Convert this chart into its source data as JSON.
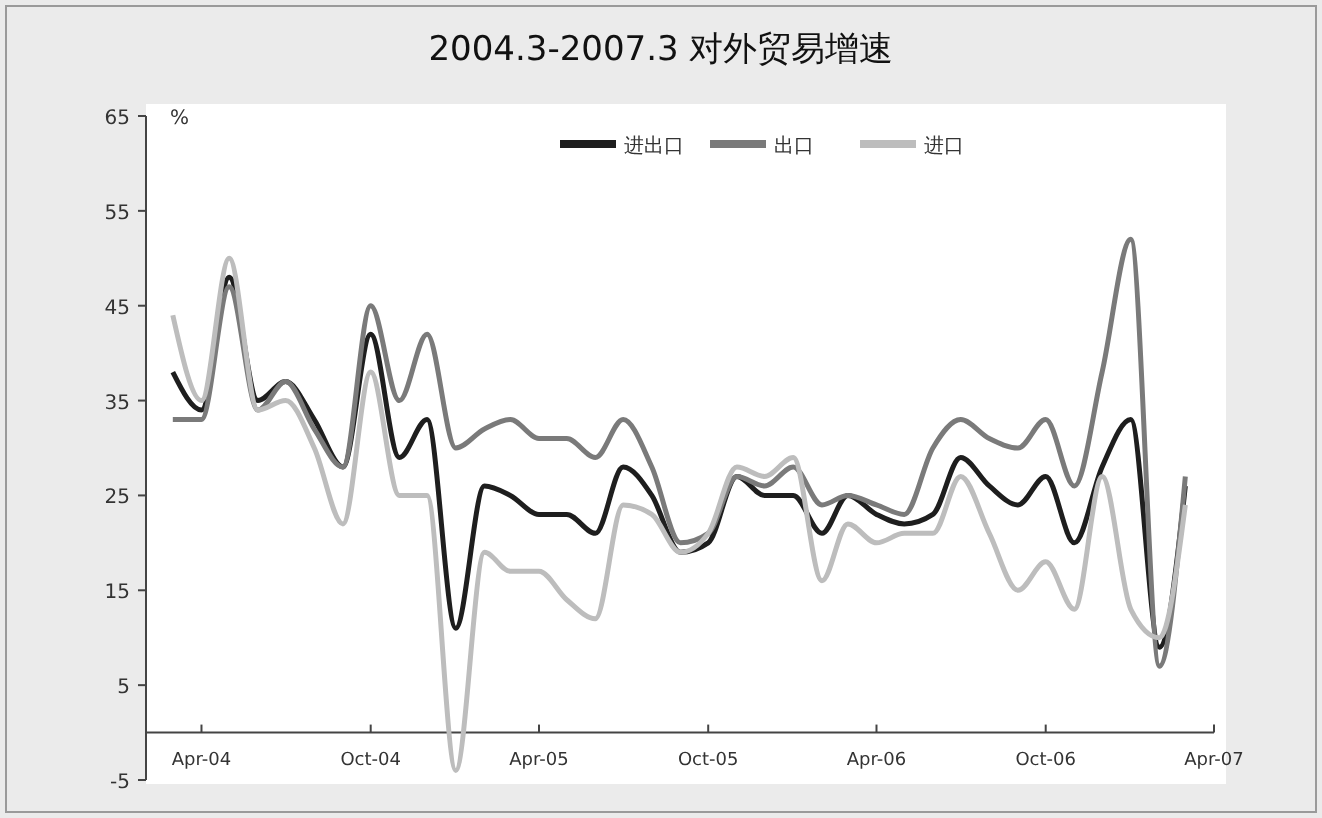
{
  "chart_data": {
    "type": "line",
    "title": "2004.3-2007.3 对外贸易增速",
    "ylabel": "%",
    "x": [
      "2004-03",
      "2004-04",
      "2004-05",
      "2004-06",
      "2004-07",
      "2004-08",
      "2004-09",
      "2004-10",
      "2004-11",
      "2004-12",
      "2005-01",
      "2005-02",
      "2005-03",
      "2005-04",
      "2005-05",
      "2005-06",
      "2005-07",
      "2005-08",
      "2005-09",
      "2005-10",
      "2005-11",
      "2005-12",
      "2006-01",
      "2006-02",
      "2006-03",
      "2006-04",
      "2006-05",
      "2006-06",
      "2006-07",
      "2006-08",
      "2006-09",
      "2006-10",
      "2006-11",
      "2006-12",
      "2007-01",
      "2007-02",
      "2007-03"
    ],
    "series": [
      {
        "name": "进出口",
        "color": "#1e1e1e",
        "values": [
          38,
          34,
          48,
          35,
          37,
          33,
          28,
          42,
          29,
          33,
          11,
          26,
          25,
          23,
          23,
          21,
          28,
          25,
          19,
          20,
          27,
          25,
          25,
          21,
          25,
          23,
          22,
          23,
          29,
          26,
          24,
          27,
          20,
          28,
          33,
          9,
          26
        ]
      },
      {
        "name": "出口",
        "color": "#7a7a7a",
        "values": [
          33,
          33,
          47,
          34,
          37,
          32,
          28,
          45,
          35,
          42,
          30,
          32,
          33,
          31,
          31,
          29,
          33,
          28,
          20,
          21,
          27,
          26,
          28,
          24,
          25,
          24,
          23,
          30,
          33,
          31,
          30,
          33,
          26,
          38,
          52,
          7,
          27
        ]
      },
      {
        "name": "进口",
        "color": "#bdbdbd",
        "values": [
          44,
          35,
          50,
          34,
          35,
          30,
          22,
          38,
          25,
          25,
          -4,
          19,
          17,
          17,
          14,
          12,
          24,
          23,
          19,
          21,
          28,
          27,
          29,
          16,
          22,
          20,
          21,
          21,
          27,
          21,
          15,
          18,
          13,
          27,
          13,
          10,
          24
        ]
      }
    ],
    "xlim": [
      "2004-02",
      "2007-04"
    ],
    "ylim": [
      -5,
      65
    ],
    "xticks": [
      {
        "value": "2004-04",
        "label": "Apr-04"
      },
      {
        "value": "2004-10",
        "label": "Oct-04"
      },
      {
        "value": "2005-04",
        "label": "Apr-05"
      },
      {
        "value": "2005-10",
        "label": "Oct-05"
      },
      {
        "value": "2006-04",
        "label": "Apr-06"
      },
      {
        "value": "2006-10",
        "label": "Oct-06"
      },
      {
        "value": "2007-04",
        "label": "Apr-07"
      }
    ],
    "yticks": [
      -5,
      5,
      15,
      25,
      35,
      45,
      55,
      65
    ],
    "grid": false,
    "legend": "top right",
    "marker": "none",
    "line_style": "solid"
  }
}
